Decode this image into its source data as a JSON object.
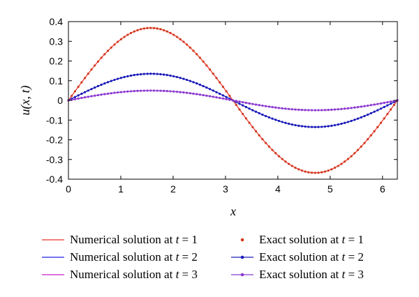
{
  "chart_data": {
    "type": "line",
    "xlabel": "x",
    "ylabel": "u(x, t)",
    "xlim": [
      0,
      6.2832
    ],
    "ylim": [
      -0.4,
      0.4
    ],
    "xticks": [
      "0",
      "1",
      "2",
      "3",
      "4",
      "5",
      "6"
    ],
    "yticks": [
      "0.4",
      "0.3",
      "0.2",
      "0.1",
      "0",
      "-0.1",
      "-0.2",
      "-0.3",
      "-0.4"
    ],
    "grid": false,
    "legend_position": "bottom",
    "function": "u(x,t) = exp(-t) * sin(x)",
    "series": [
      {
        "name": "Numerical solution at t = 1",
        "t": 1,
        "amplitude": 0.3679,
        "style": "line",
        "color": "#e8312a"
      },
      {
        "name": "Exact solution at t = 1",
        "t": 1,
        "amplitude": 0.3679,
        "style": "dots",
        "color": "#d23a1d"
      },
      {
        "name": "Numerical solution at t = 2",
        "t": 2,
        "amplitude": 0.1353,
        "style": "line",
        "color": "#2323e6"
      },
      {
        "name": "Exact solution at t = 2",
        "t": 2,
        "amplitude": 0.1353,
        "style": "line-dots",
        "color": "#1a1ab8"
      },
      {
        "name": "Numerical solution at t = 3",
        "t": 3,
        "amplitude": 0.0498,
        "style": "line",
        "color": "#c81ec8"
      },
      {
        "name": "Exact solution at t = 3",
        "t": 3,
        "amplitude": 0.0498,
        "style": "line-dots",
        "color": "#8a3ad0"
      }
    ],
    "sample_points": 100
  },
  "legend": {
    "items": [
      {
        "prefix": "Numerical solution at ",
        "var": "t",
        "suffix": " = 1"
      },
      {
        "prefix": "Exact solution at ",
        "var": "t",
        "suffix": " = 1"
      },
      {
        "prefix": "Numerical solution at ",
        "var": "t",
        "suffix": " = 2"
      },
      {
        "prefix": "Exact solution at ",
        "var": "t",
        "suffix": " = 2"
      },
      {
        "prefix": "Numerical solution at ",
        "var": "t",
        "suffix": " = 3"
      },
      {
        "prefix": "Exact solution at ",
        "var": "t",
        "suffix": " = 3"
      }
    ]
  }
}
